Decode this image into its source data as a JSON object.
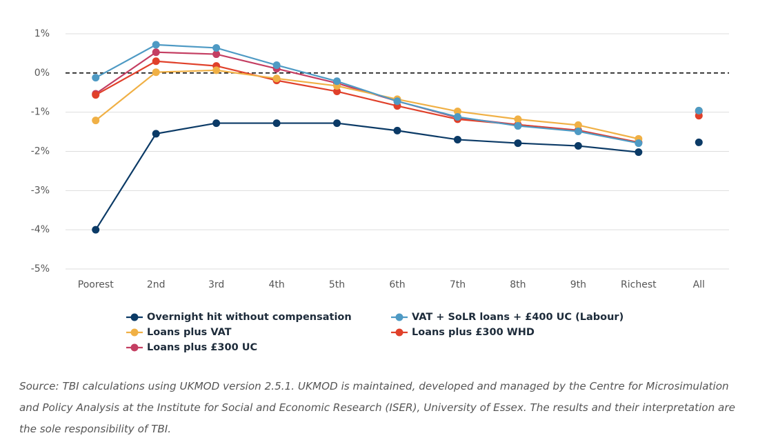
{
  "chart_data": {
    "type": "line",
    "categories": [
      "Poorest",
      "2nd",
      "3rd",
      "4th",
      "5th",
      "6th",
      "7th",
      "8th",
      "9th",
      "Richest",
      "All"
    ],
    "series": [
      {
        "name": "Overnight hit without compensation",
        "color": "#0b3a66",
        "values": [
          -4.0,
          -1.55,
          -1.28,
          -1.28,
          -1.28,
          -1.47,
          -1.7,
          -1.79,
          -1.86,
          -2.02,
          -1.77
        ]
      },
      {
        "name": "VAT + SoLR loans + £400 UC (Labour)",
        "color": "#4e9ac4",
        "values": [
          -0.12,
          0.72,
          0.64,
          0.2,
          -0.21,
          -0.72,
          -1.12,
          -1.35,
          -1.49,
          -1.79,
          -0.96
        ]
      },
      {
        "name": "Loans plus VAT",
        "color": "#f0b045",
        "values": [
          -1.21,
          0.02,
          0.07,
          -0.14,
          -0.33,
          -0.67,
          -0.98,
          -1.18,
          -1.33,
          -1.68,
          -0.96
        ]
      },
      {
        "name": "Loans plus £300 WHD",
        "color": "#e0402a",
        "values": [
          -0.56,
          0.3,
          0.18,
          -0.19,
          -0.47,
          -0.84,
          -1.18,
          -1.32,
          -1.47,
          -1.77,
          -1.09
        ]
      },
      {
        "name": "Loans plus £300 UC",
        "color": "#c43e62",
        "values": [
          -0.53,
          0.53,
          0.48,
          0.11,
          -0.26,
          -0.72,
          -1.14,
          -1.32,
          -1.46,
          -1.77,
          -0.98
        ]
      }
    ],
    "ylim": [
      -5,
      1
    ],
    "yticks": [
      {
        "value": 1,
        "label": "1%"
      },
      {
        "value": 0,
        "label": "0%"
      },
      {
        "value": -1,
        "label": "-1%"
      },
      {
        "value": -2,
        "label": "-2%"
      },
      {
        "value": -3,
        "label": "-3%"
      },
      {
        "value": -4,
        "label": "-4%"
      },
      {
        "value": -5,
        "label": "-5%"
      }
    ],
    "grid": true,
    "source": "Source: TBI calculations using UKMOD version 2.5.1. UKMOD is maintained, developed and managed by the Centre for Microsimulation and Policy Analysis at the Institute for Social and Economic Research (ISER), University of Essex. The results and their interpretation are the sole responsibility of TBI."
  }
}
